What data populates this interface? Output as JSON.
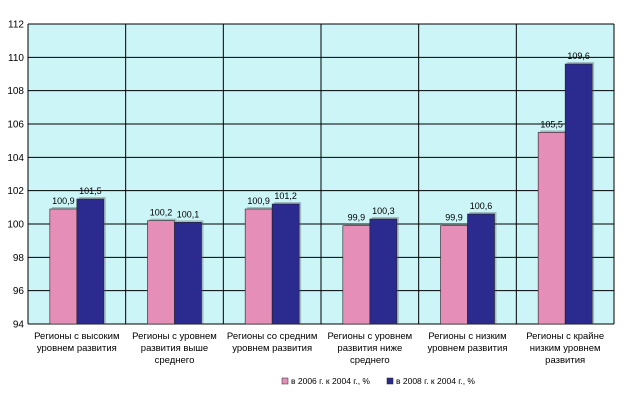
{
  "chart_data": {
    "type": "bar",
    "categories": [
      [
        "Регионы с высоким",
        "уровнем развития"
      ],
      [
        "Регионы с уровнем",
        "развития выше",
        "среднего"
      ],
      [
        "Регионы со средним",
        "уровнем развития"
      ],
      [
        "Регионы с уровнем",
        "развития ниже",
        "среднего"
      ],
      [
        "Регионы с низким",
        "уровнем развития"
      ],
      [
        "Регионы с крайне",
        "низким уровнем",
        "развития"
      ]
    ],
    "series": [
      {
        "name": "в 2006 г. к 2004 г., %",
        "values": [
          100.9,
          100.2,
          100.9,
          99.9,
          99.9,
          105.5
        ],
        "labels": [
          "100,9",
          "100,2",
          "100,9",
          "99,9",
          "99,9",
          "105,5"
        ],
        "color": "#e58fb8"
      },
      {
        "name": "в 2008 г. к 2004 г., %",
        "values": [
          101.5,
          100.1,
          101.2,
          100.3,
          100.6,
          109.6
        ],
        "labels": [
          "101,5",
          "100,1",
          "101,2",
          "100,3",
          "100,6",
          "109,6"
        ],
        "color": "#2b2b8f"
      }
    ],
    "ylim": [
      94,
      112
    ],
    "yticks": [
      94,
      96,
      98,
      100,
      102,
      104,
      106,
      108,
      110,
      112
    ],
    "grid": true,
    "legend_position": "bottom",
    "colors": {
      "plot_bg": "#ccf5f7",
      "grid": "#000000"
    }
  }
}
